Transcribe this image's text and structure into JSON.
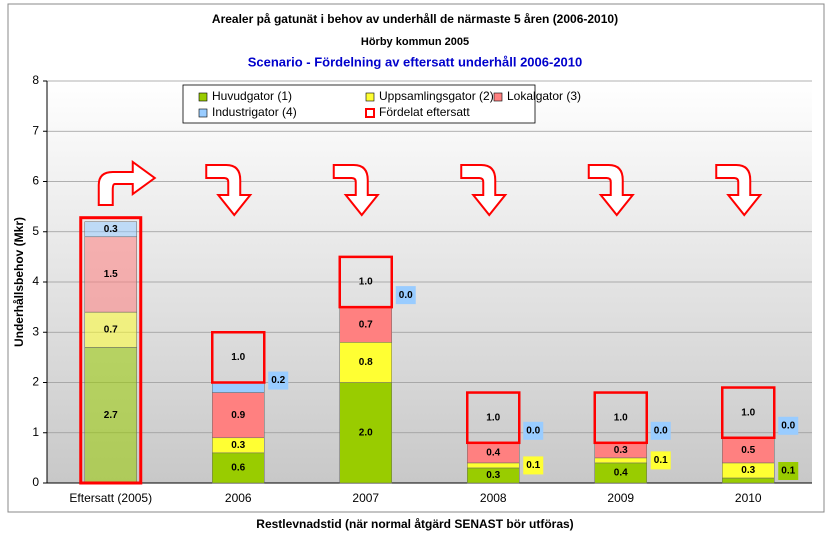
{
  "chart_data": {
    "type": "stacked_bar",
    "title": "Arealer på gatunät i behov av underhåll de närmaste 5 åren (2006-2010)",
    "subtitle": "Hörby kommun 2005",
    "scenario": "Scenario - Fördelning av eftersatt underhåll 2006-2010",
    "y_label": "Underhållsbehov (Mkr)",
    "x_label": "Restlevnadstid (när normal åtgärd SENAST bör utföras)",
    "categories": [
      "Eftersatt (2005)",
      "2006",
      "2007",
      "2008",
      "2009",
      "2010"
    ],
    "series": [
      {
        "name": "Huvudgator (1)",
        "color": "#99cc00",
        "values": [
          2.7,
          0.6,
          2.0,
          0.3,
          0.4,
          0.1
        ],
        "value_labels": [
          "2.7",
          "0.6",
          "2.0",
          "0.3",
          "0.4",
          "0.1"
        ]
      },
      {
        "name": "Uppsamlingsgator (2)",
        "color": "#ffff33",
        "values": [
          0.7,
          0.3,
          0.8,
          0.1,
          0.1,
          0.3
        ],
        "value_labels": [
          "0.7",
          "0.3",
          "0.8",
          "0.1",
          "0.1",
          "0.3"
        ]
      },
      {
        "name": "Lokalgator (3)",
        "color": "#ff8080",
        "values": [
          1.5,
          0.9,
          0.7,
          0.4,
          0.3,
          0.5
        ],
        "value_labels": [
          "1.5",
          "0.9",
          "0.7",
          "0.4",
          "0.3",
          "0.5"
        ]
      },
      {
        "name": "Industrigator (4)",
        "color": "#99ccff",
        "values": [
          0.3,
          0.2,
          0.0,
          0.0,
          0.0,
          0.0
        ],
        "value_labels": [
          "0.3",
          "0.2",
          "0.0",
          "0.0",
          "0.0",
          "0.0"
        ]
      }
    ],
    "distributed": {
      "name": "Fördelat eftersatt",
      "color": "#ff0000",
      "values": [
        null,
        1.0,
        1.0,
        1.0,
        1.0,
        1.0
      ],
      "value_labels": [
        null,
        "1.0",
        "1.0",
        "1.0",
        "1.0",
        "1.0"
      ]
    },
    "ylim": [
      0,
      8
    ],
    "yticks": [
      0,
      1,
      2,
      3,
      4,
      5,
      6,
      7,
      8
    ],
    "grid": true
  }
}
